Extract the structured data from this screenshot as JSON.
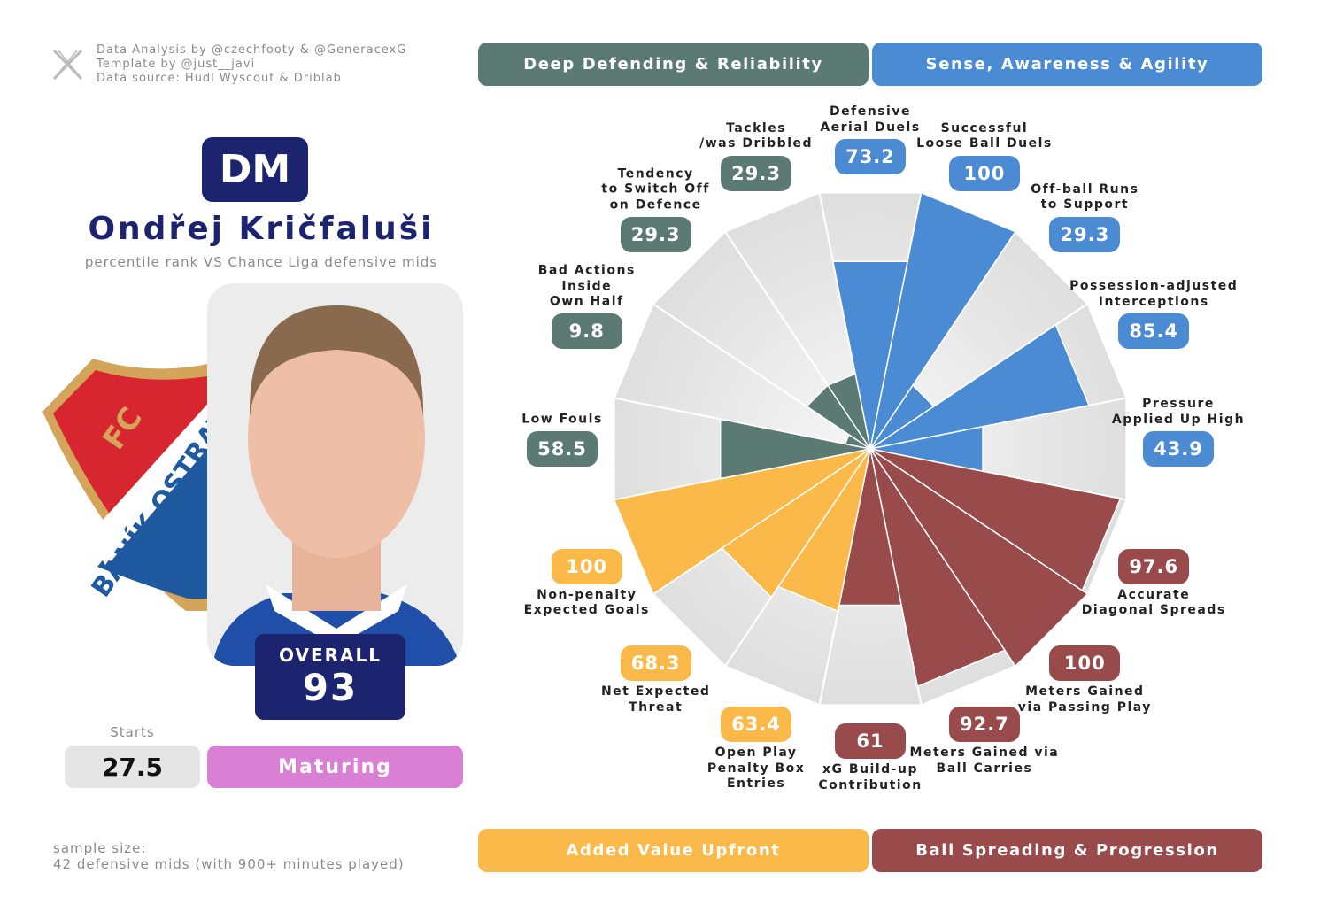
{
  "attribution": [
    "Data Analysis by @czechfooty & @GeneracexG",
    "Template by @just__javi",
    "Data source: Hudl Wyscout & Driblab"
  ],
  "position": "DM",
  "player": "Ondřej Kričfaluši",
  "subtitle": "percentile rank VS Chance Liga defensive mids",
  "logo": {
    "top": "FC",
    "bottom": "BANÍK OSTRAVA"
  },
  "overall": {
    "label": "OVERALL",
    "value": 93
  },
  "starts": {
    "label": "Starts",
    "value": 27.5
  },
  "status": "Maturing",
  "sample": [
    "sample size:",
    "42 defensive mids (with 900+ minutes played)"
  ],
  "chart_data": {
    "type": "pizza",
    "rlim": [
      0,
      100
    ],
    "series": [
      {
        "name": "Sense, Awareness & Agility",
        "color": "#4b8bd4",
        "categories": [
          "Defensive\nAerial Duels",
          "Successful\nLoose Ball Duels",
          "Off-ball Runs\nto Support",
          "Possession-adjusted\nInterceptions",
          "Pressure\nApplied Up High"
        ],
        "values": [
          73.2,
          100,
          29.3,
          85.4,
          43.9
        ]
      },
      {
        "name": "Ball Spreading & Progression",
        "color": "#994a4a",
        "categories": [
          "Accurate\nDiagonal Spreads",
          "Meters Gained\nvia Passing Play",
          "Meters Gained via\nBall Carries",
          "xG Build-up\nContribution"
        ],
        "values": [
          97.6,
          100,
          92.7,
          61
        ]
      },
      {
        "name": "Added Value Upfront",
        "color": "#fbb94a",
        "categories": [
          "Open Play\nPenalty Box\nEntries",
          "Net Expected\nThreat",
          "Non-penalty\nExpected Goals"
        ],
        "values": [
          63.4,
          68.3,
          100
        ]
      },
      {
        "name": "Deep Defending & Reliability",
        "color": "#5a7a73",
        "categories": [
          "Low Fouls",
          "Bad Actions\nInside\nOwn Half",
          "Tendency\nto Switch Off\non Defence",
          "Tackles\n/was Dribbled"
        ],
        "values": [
          58.5,
          9.8,
          29.3,
          29.3
        ]
      }
    ]
  }
}
